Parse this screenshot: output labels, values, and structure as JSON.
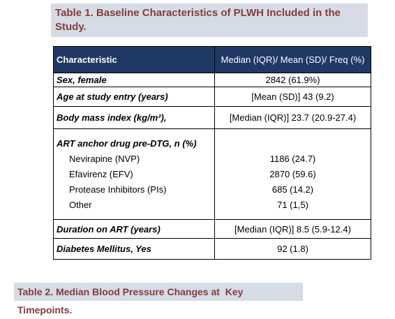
{
  "table1": {
    "title": "Table 1. Baseline Characteristics of PLWH Included in the Study.",
    "header": [
      "Characteristic",
      "Median (IQR)/ Mean (SD)/ Freq (%)"
    ],
    "rows": [
      {
        "label": "Sex, female",
        "value": "2842 (61.9%)"
      },
      {
        "label": "Age at  study entry (years)",
        "value": "[Mean (SD)] 43 (9.2)"
      },
      {
        "label": "Body mass index (kg/m²),",
        "value": "[Median (IQR)] 23.7 (20.9-27.4)"
      },
      {
        "label": "ART anchor drug pre-DTG, n (%)",
        "items": [
          {
            "label": "Nevirapine (NVP)",
            "value": "1186 (24.7)"
          },
          {
            "label": "Efavirenz (EFV)",
            "value": "2870 (59.6)"
          },
          {
            "label": "Protease Inhibitors (PIs)",
            "value": "685 (14.2)"
          },
          {
            "label": "Other",
            "value": "71 (1,5)"
          }
        ]
      },
      {
        "label": "Duration on ART (years)",
        "value": "[Median (IQR)] 8.5 (5.9-12.4)"
      },
      {
        "label": "Diabetes Mellitus, Yes",
        "value": "92 (1.8)"
      }
    ]
  },
  "table2": {
    "title": "Table 2. Median Blood Pressure Changes at  Key Timepoints."
  }
}
